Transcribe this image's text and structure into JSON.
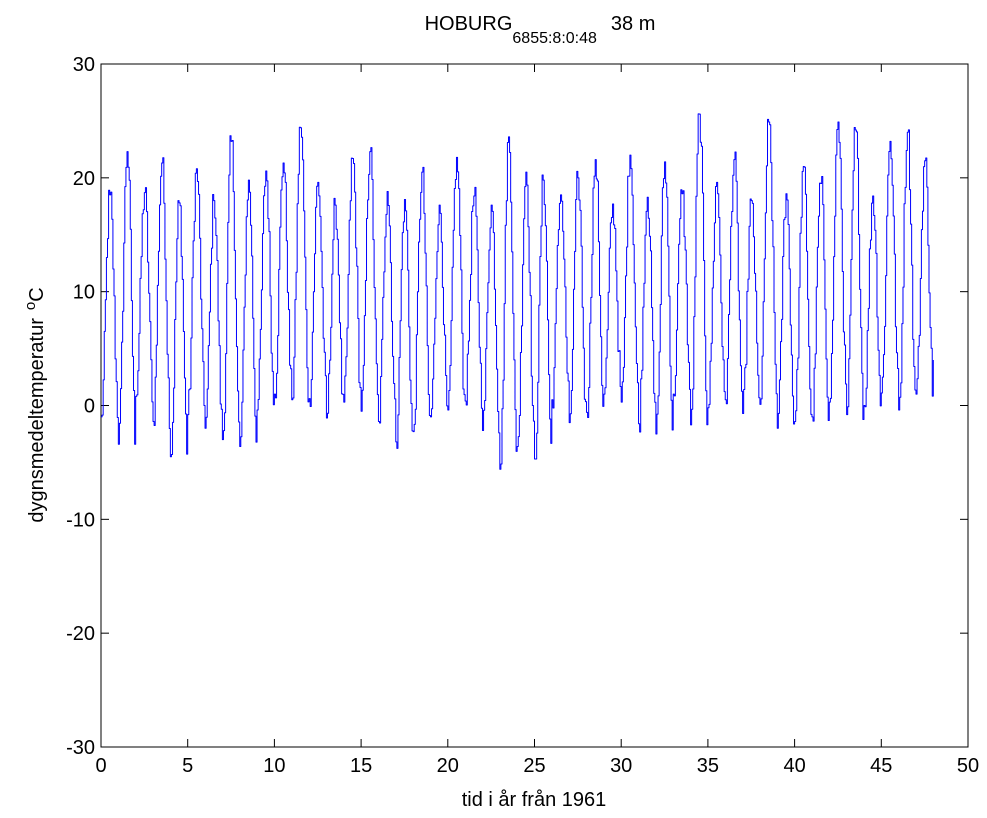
{
  "chart_data": {
    "type": "line",
    "title_main": "HOBURG",
    "title_subscript": "6855:8:0:48",
    "title_suffix": "38 m",
    "xlabel": "tid i år från 1961",
    "ylabel_text": "dygnsmedeltemperatur",
    "ylabel_sup": "o",
    "ylabel_unit": "C",
    "xlim": [
      0,
      50
    ],
    "ylim": [
      -30,
      30
    ],
    "xticks": [
      0,
      5,
      10,
      15,
      20,
      25,
      30,
      35,
      40,
      45,
      50
    ],
    "yticks": [
      -30,
      -20,
      -10,
      0,
      10,
      20,
      30
    ],
    "grid": false,
    "line_color": "#0000ff",
    "seasonal_peaks": [
      18.5,
      22.3,
      18.7,
      21.3,
      17.8,
      20.8,
      18.0,
      23.2,
      19.8,
      20.6,
      21.3,
      24.4,
      19.6,
      17.6,
      21.7,
      22.3,
      18.8,
      18.1,
      20.5,
      17.6,
      21.8,
      18.4,
      17.6,
      23.6,
      20.5,
      19.8,
      18.5,
      20.0,
      21.6,
      17.7,
      22.0,
      18.3,
      21.4,
      18.6,
      25.6,
      19.6,
      21.6,
      18.0,
      24.9,
      18.6,
      21.0,
      19.5,
      24.9,
      24.2,
      18.4,
      23.2,
      24.0,
      21.5
    ],
    "seasonal_troughs": [
      -1.0,
      -3.4,
      0.8,
      -1.4,
      -4.5,
      -0.8,
      -2.0,
      -3.0,
      -3.6,
      -0.4,
      1.0,
      0.5,
      0.6,
      -1.1,
      0.3,
      -0.5,
      -1.4,
      -3.2,
      -2.3,
      -1.0,
      -0.4,
      0.4,
      -2.2,
      -5.6,
      -3.6,
      -4.7,
      0.5,
      -1.5,
      -0.6,
      1.0,
      0.3,
      -1.6,
      -2.5,
      1.0,
      -1.7,
      -0.2,
      0.5,
      -0.7,
      0.1,
      -2.0,
      -1.4,
      -1.0,
      0.3,
      -0.8,
      0.0,
      1.1,
      -0.4,
      1.0
    ]
  }
}
